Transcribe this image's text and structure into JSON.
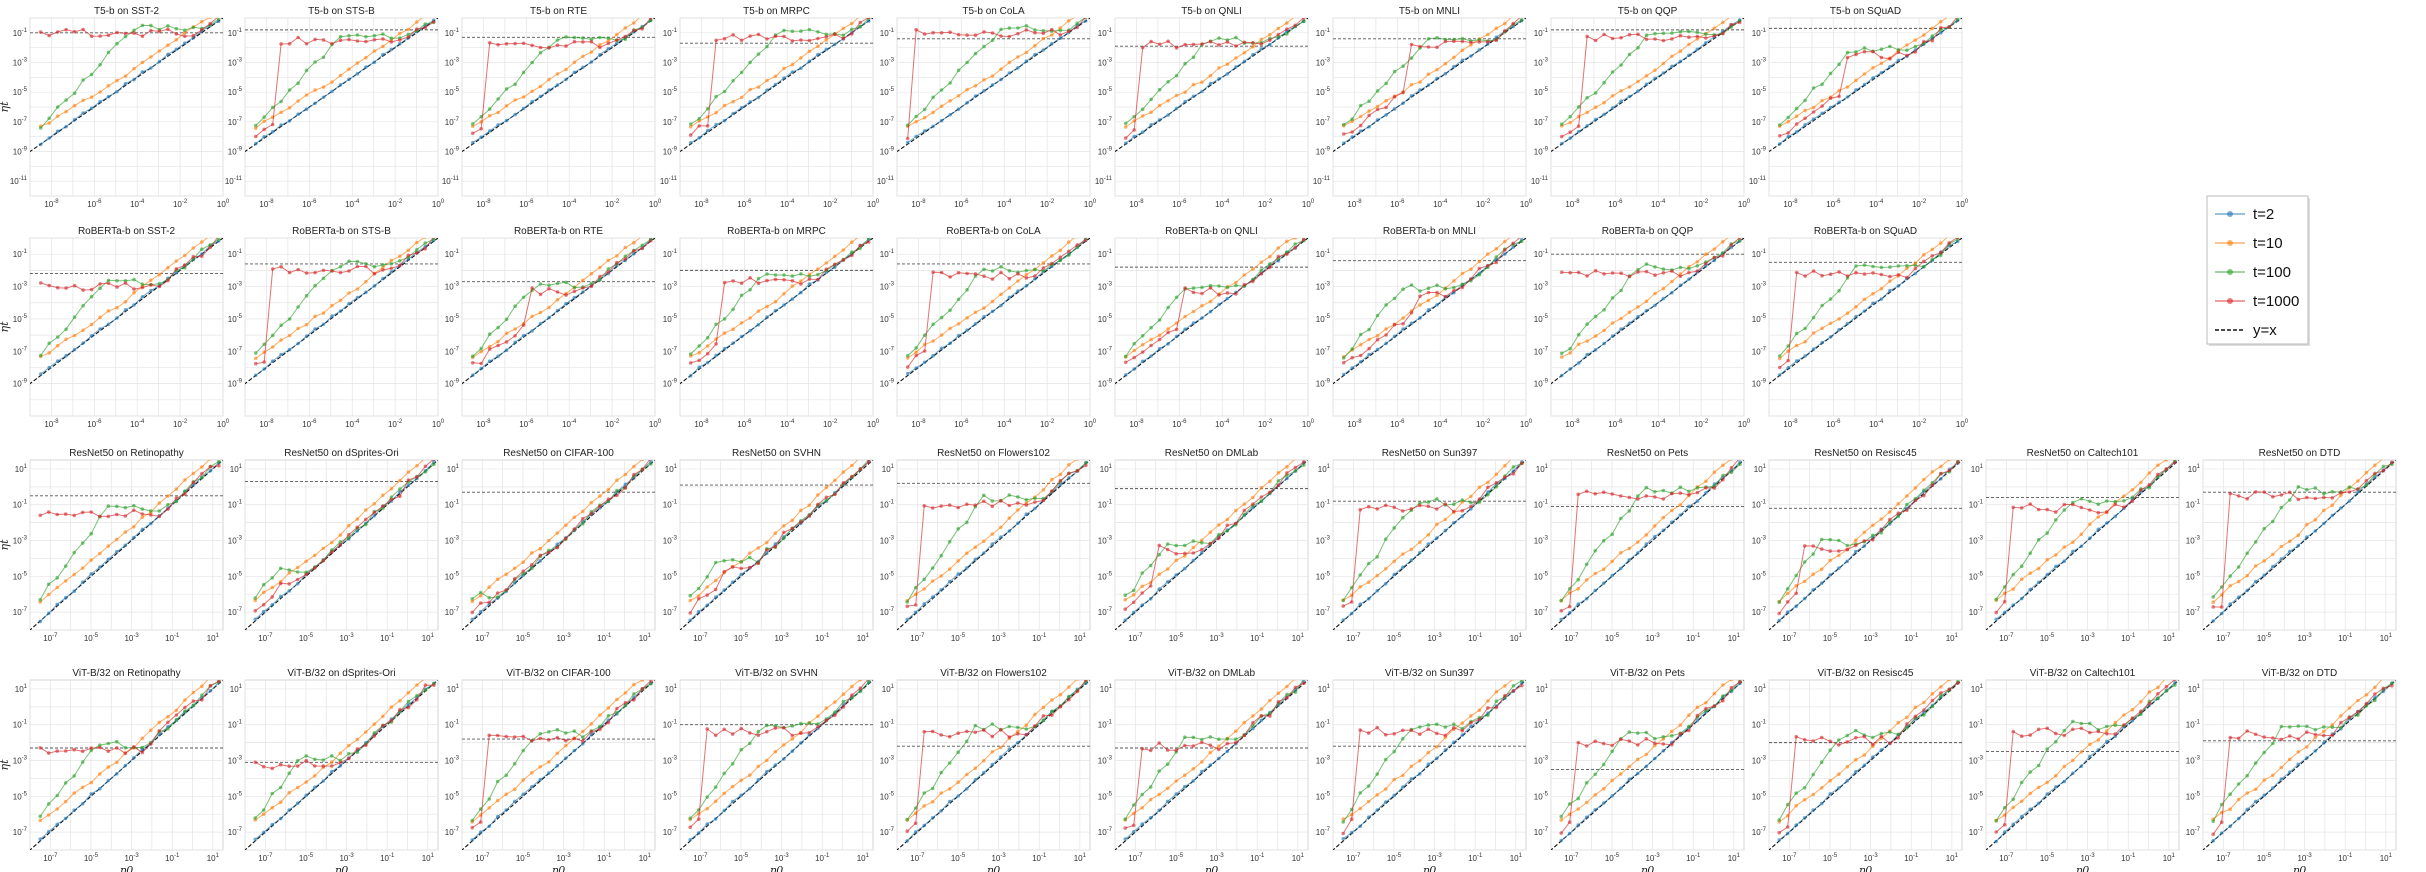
{
  "colors": {
    "t2": "#1f77b4",
    "t10": "#ff7f0e",
    "t100": "#2ca02c",
    "t1000": "#d62728",
    "grid": "#e4e4e4",
    "diag": "#111111",
    "hline": "#555555"
  },
  "legend": {
    "entries": [
      {
        "label": "t=2",
        "color": "#1f77b4",
        "style": "marker-line"
      },
      {
        "label": "t=10",
        "color": "#ff7f0e",
        "style": "marker-line"
      },
      {
        "label": "t=100",
        "color": "#2ca02c",
        "style": "marker-line"
      },
      {
        "label": "t=1000",
        "color": "#d62728",
        "style": "marker-line"
      },
      {
        "label": "y=x",
        "color": "#111111",
        "style": "dashed"
      }
    ],
    "placement": "right"
  },
  "chart_data": {
    "type": "line",
    "rows": [
      {
        "xlabel": "",
        "ylabel": "ηt",
        "xlim_exp": [
          -9,
          0
        ],
        "xticks": [
          -8,
          -6,
          -4,
          -2,
          0
        ],
        "ylim_exp": [
          -12,
          0
        ],
        "yticks": [
          -11,
          -9,
          -7,
          -5,
          -3,
          -1
        ],
        "panels": [
          {
            "title": "T5-b on SST-2",
            "jump": -8.5,
            "plateau": -1.0,
            "hline": -1.0
          },
          {
            "title": "T5-b on STS-B",
            "jump": -7.5,
            "plateau": -1.5,
            "hline": -0.8
          },
          {
            "title": "T5-b on RTE",
            "jump": -8.0,
            "plateau": -1.8,
            "hline": -1.3
          },
          {
            "title": "T5-b on MRPC",
            "jump": -7.5,
            "plateau": -1.3,
            "hline": -1.7
          },
          {
            "title": "T5-b on CoLA",
            "jump": -8.3,
            "plateau": -1.0,
            "hline": -1.4
          },
          {
            "title": "T5-b on QNLI",
            "jump": -7.8,
            "plateau": -1.8,
            "hline": -1.9
          },
          {
            "title": "T5-b on MNLI",
            "jump": -5.5,
            "plateau": -1.8,
            "hline": -1.4
          },
          {
            "title": "T5-b on QQP",
            "jump": -7.5,
            "plateau": -1.3,
            "hline": -0.8
          },
          {
            "title": "T5-b on SQuAD",
            "jump": -5.5,
            "plateau": -2.5,
            "hline": -0.7
          }
        ]
      },
      {
        "xlabel": "",
        "ylabel": "ηt",
        "xlim_exp": [
          -9,
          0
        ],
        "xticks": [
          -8,
          -6,
          -4,
          -2,
          0
        ],
        "ylim_exp": [
          -11,
          0
        ],
        "yticks": [
          -9,
          -7,
          -5,
          -3,
          -1
        ],
        "panels": [
          {
            "title": "RoBERTa-b on SST-2",
            "jump": -8.5,
            "plateau": -3.0,
            "hline": -2.2
          },
          {
            "title": "RoBERTa-b on STS-B",
            "jump": -8.0,
            "plateau": -2.0,
            "hline": -1.6
          },
          {
            "title": "RoBERTa-b on RTE",
            "jump": -6.0,
            "plateau": -3.3,
            "hline": -2.7
          },
          {
            "title": "RoBERTa-b on MRPC",
            "jump": -7.0,
            "plateau": -2.6,
            "hline": -2.0
          },
          {
            "title": "RoBERTa-b on CoLA",
            "jump": -7.5,
            "plateau": -2.3,
            "hline": -1.6
          },
          {
            "title": "RoBERTa-b on QNLI",
            "jump": -6.0,
            "plateau": -3.3,
            "hline": -1.8
          },
          {
            "title": "RoBERTa-b on MNLI",
            "jump": -5.0,
            "plateau": -3.5,
            "hline": -1.4
          },
          {
            "title": "RoBERTa-b on QQP",
            "jump": -8.5,
            "plateau": -2.2,
            "hline": -1.0
          },
          {
            "title": "RoBERTa-b on SQuAD",
            "jump": -8.0,
            "plateau": -2.2,
            "hline": -1.5
          }
        ]
      },
      {
        "xlabel": "",
        "ylabel": "ηt",
        "xlim_exp": [
          -8,
          1.5
        ],
        "xticks": [
          -7,
          -5,
          -3,
          -1,
          1
        ],
        "ylim_exp": [
          -8,
          1.5
        ],
        "yticks": [
          -7,
          -5,
          -3,
          -1,
          1
        ],
        "panels": [
          {
            "title": "ResNet50 on Retinopathy",
            "jump": -8.0,
            "plateau": -1.5,
            "hline": -0.5
          },
          {
            "title": "ResNet50 on dSprites-Ori",
            "jump": -5.5,
            "plateau": -5.0,
            "hline": 0.3
          },
          {
            "title": "ResNet50 on CIFAR-100",
            "jump": -7.0,
            "plateau": -6.5,
            "hline": -0.3
          },
          {
            "title": "ResNet50 on SVHN",
            "jump": -6.0,
            "plateau": -4.5,
            "hline": 0.1
          },
          {
            "title": "ResNet50 on Flowers102",
            "jump": -6.8,
            "plateau": -1.0,
            "hline": 0.2
          },
          {
            "title": "ResNet50 on DMLab",
            "jump": -6.0,
            "plateau": -3.5,
            "hline": -0.1
          },
          {
            "title": "ResNet50 on Sun397",
            "jump": -7.0,
            "plateau": -1.2,
            "hline": -0.8
          },
          {
            "title": "ResNet50 on Pets",
            "jump": -7.0,
            "plateau": -0.5,
            "hline": -1.1
          },
          {
            "title": "ResNet50 on Resisc45",
            "jump": -6.5,
            "plateau": -3.5,
            "hline": -1.2
          },
          {
            "title": "ResNet50 on Caltech101",
            "jump": -7.0,
            "plateau": -1.2,
            "hline": -0.6
          },
          {
            "title": "ResNet50 on DTD",
            "jump": -7.0,
            "plateau": -0.5,
            "hline": -0.3
          }
        ]
      },
      {
        "xlabel": "η0",
        "ylabel": "ηt",
        "xlim_exp": [
          -8,
          1.5
        ],
        "xticks": [
          -7,
          -5,
          -3,
          -1,
          1
        ],
        "ylim_exp": [
          -8,
          1.5
        ],
        "yticks": [
          -7,
          -5,
          -3,
          -1,
          1
        ],
        "panels": [
          {
            "title": "ViT-B/32 on Retinopathy",
            "jump": -8.0,
            "plateau": -2.4,
            "hline": -2.3
          },
          {
            "title": "ViT-B/32 on dSprites-Ori",
            "jump": -8.0,
            "plateau": -3.2,
            "hline": -3.1
          },
          {
            "title": "ViT-B/32 on CIFAR-100",
            "jump": -7.0,
            "plateau": -1.8,
            "hline": -1.8
          },
          {
            "title": "ViT-B/32 on SVHN",
            "jump": -7.0,
            "plateau": -1.4,
            "hline": -1.0
          },
          {
            "title": "ViT-B/32 on Flowers102",
            "jump": -7.0,
            "plateau": -1.5,
            "hline": -2.2
          },
          {
            "title": "ViT-B/32 on DMLab",
            "jump": -7.0,
            "plateau": -2.2,
            "hline": -2.3
          },
          {
            "title": "ViT-B/32 on Sun397",
            "jump": -7.0,
            "plateau": -1.4,
            "hline": -2.2
          },
          {
            "title": "ViT-B/32 on Pets",
            "jump": -7.0,
            "plateau": -2.0,
            "hline": -3.5
          },
          {
            "title": "ViT-B/32 on Resisc45",
            "jump": -7.0,
            "plateau": -1.9,
            "hline": -2.0
          },
          {
            "title": "ViT-B/32 on Caltech101",
            "jump": -7.0,
            "plateau": -1.4,
            "hline": -2.5
          },
          {
            "title": "ViT-B/32 on DTD",
            "jump": -7.0,
            "plateau": -1.6,
            "hline": -1.9
          }
        ]
      }
    ],
    "series": [
      {
        "name": "t=2"
      },
      {
        "name": "t=10"
      },
      {
        "name": "t=100"
      },
      {
        "name": "t=1000"
      },
      {
        "name": "y=x"
      }
    ],
    "xscale": "log",
    "yscale": "log",
    "grid": true
  }
}
